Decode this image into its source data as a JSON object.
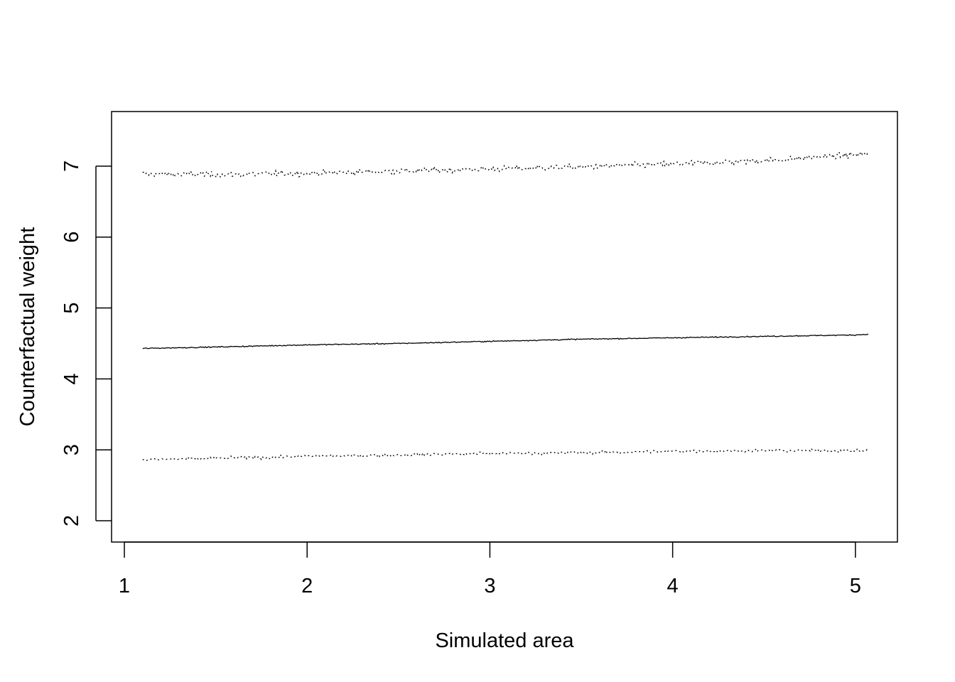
{
  "chart_data": {
    "type": "line",
    "title": "",
    "xlabel": "Simulated area",
    "ylabel": "Counterfactual weight",
    "xlim": [
      0.93,
      5.23
    ],
    "ylim": [
      1.7,
      7.77
    ],
    "x_ticks": [
      1,
      2,
      3,
      4,
      5
    ],
    "y_ticks": [
      2,
      3,
      4,
      5,
      6,
      7
    ],
    "grid": false,
    "legend": "none",
    "x_range": [
      1.1,
      5.07
    ],
    "series": [
      {
        "line_style": "dotted",
        "color": "#000000",
        "noise": 0.035,
        "x": [
          1.1,
          1.5,
          2.0,
          2.5,
          3.0,
          3.5,
          4.0,
          4.5,
          5.0,
          5.07
        ],
        "y": [
          6.89,
          6.88,
          6.9,
          6.93,
          6.96,
          6.99,
          7.03,
          7.08,
          7.16,
          7.19
        ]
      },
      {
        "line_style": "solid",
        "color": "#000000",
        "noise": 0.006,
        "x": [
          1.1,
          1.5,
          2.0,
          2.5,
          3.0,
          3.5,
          4.0,
          4.5,
          5.0,
          5.07
        ],
        "y": [
          4.43,
          4.45,
          4.48,
          4.5,
          4.53,
          4.56,
          4.58,
          4.6,
          4.62,
          4.63
        ]
      },
      {
        "line_style": "dotted",
        "color": "#000000",
        "noise": 0.018,
        "x": [
          1.1,
          1.5,
          2.0,
          2.5,
          3.0,
          3.5,
          4.0,
          4.5,
          5.0,
          5.07
        ],
        "y": [
          2.86,
          2.88,
          2.91,
          2.93,
          2.95,
          2.96,
          2.98,
          2.99,
          2.99,
          2.99
        ]
      }
    ]
  }
}
